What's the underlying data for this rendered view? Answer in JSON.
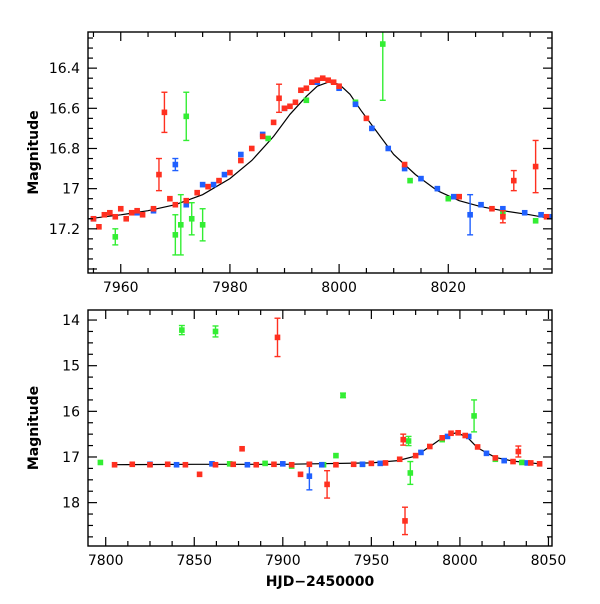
{
  "colors": {
    "red": "#ff3020",
    "green": "#33ee33",
    "blue": "#2060ff",
    "axis": "#000000"
  },
  "chart_data": [
    {
      "type": "scatter",
      "title": "",
      "xlabel": "",
      "ylabel": "Magnitude",
      "xlim": [
        7954,
        8039
      ],
      "ylim": [
        17.42,
        16.22
      ],
      "y_inverted": true,
      "grid": false,
      "xticks": [
        7960,
        7980,
        8000,
        8020
      ],
      "xtick_labels": [
        "7960",
        "7980",
        "8000",
        "8020"
      ],
      "yticks": [
        16.4,
        16.6,
        16.8,
        17.0,
        17.2
      ],
      "ytick_labels": [
        "16.4",
        "16.6",
        "16.8",
        "17",
        "17.2"
      ],
      "model_curve": {
        "x": [
          7954,
          7960,
          7965,
          7970,
          7975,
          7980,
          7984,
          7988,
          7991,
          7994,
          7996,
          7998,
          8000,
          8002,
          8004,
          8007,
          8010,
          8014,
          8018,
          8022,
          8026,
          8030,
          8035,
          8039
        ],
        "y": [
          17.15,
          17.13,
          17.11,
          17.08,
          17.03,
          16.95,
          16.86,
          16.74,
          16.63,
          16.54,
          16.49,
          16.47,
          16.48,
          16.53,
          16.61,
          16.72,
          16.83,
          16.93,
          17.01,
          17.06,
          17.09,
          17.11,
          17.13,
          17.15
        ]
      },
      "series": [
        {
          "color": "red",
          "points": [
            {
              "x": 7955,
              "y": 17.15
            },
            {
              "x": 7956,
              "y": 17.19
            },
            {
              "x": 7957,
              "y": 17.13
            },
            {
              "x": 7958,
              "y": 17.12
            },
            {
              "x": 7959,
              "y": 17.14
            },
            {
              "x": 7960,
              "y": 17.1
            },
            {
              "x": 7961,
              "y": 17.15
            },
            {
              "x": 7962,
              "y": 17.12
            },
            {
              "x": 7963,
              "y": 17.11
            },
            {
              "x": 7964,
              "y": 17.13
            },
            {
              "x": 7966,
              "y": 17.1
            },
            {
              "x": 7967,
              "y": 16.93,
              "err": 0.08
            },
            {
              "x": 7968,
              "y": 16.62,
              "err": 0.1
            },
            {
              "x": 7969,
              "y": 17.05
            },
            {
              "x": 7970,
              "y": 17.08
            },
            {
              "x": 7972,
              "y": 17.06
            },
            {
              "x": 7974,
              "y": 17.02
            },
            {
              "x": 7976,
              "y": 16.99
            },
            {
              "x": 7978,
              "y": 16.96
            },
            {
              "x": 7980,
              "y": 16.92
            },
            {
              "x": 7982,
              "y": 16.86
            },
            {
              "x": 7984,
              "y": 16.8
            },
            {
              "x": 7986,
              "y": 16.74
            },
            {
              "x": 7988,
              "y": 16.67
            },
            {
              "x": 7989,
              "y": 16.55,
              "err": 0.07
            },
            {
              "x": 7990,
              "y": 16.6
            },
            {
              "x": 7991,
              "y": 16.59
            },
            {
              "x": 7992,
              "y": 16.57
            },
            {
              "x": 7993,
              "y": 16.51
            },
            {
              "x": 7994,
              "y": 16.5
            },
            {
              "x": 7995,
              "y": 16.47
            },
            {
              "x": 7996,
              "y": 16.46
            },
            {
              "x": 7997,
              "y": 16.45
            },
            {
              "x": 7998,
              "y": 16.46
            },
            {
              "x": 7999,
              "y": 16.47
            },
            {
              "x": 8000,
              "y": 16.49
            },
            {
              "x": 8005,
              "y": 16.65
            },
            {
              "x": 8012,
              "y": 16.88
            },
            {
              "x": 8022,
              "y": 17.04
            },
            {
              "x": 8028,
              "y": 17.1
            },
            {
              "x": 8030,
              "y": 17.14,
              "err": 0.03
            },
            {
              "x": 8032,
              "y": 16.96,
              "err": 0.05
            },
            {
              "x": 8036,
              "y": 16.89,
              "err": 0.13
            },
            {
              "x": 8038,
              "y": 17.14
            }
          ]
        },
        {
          "color": "blue",
          "points": [
            {
              "x": 7955,
              "y": 17.15
            },
            {
              "x": 7963,
              "y": 17.12
            },
            {
              "x": 7966,
              "y": 17.11
            },
            {
              "x": 7970,
              "y": 16.88,
              "err": 0.03
            },
            {
              "x": 7972,
              "y": 17.08
            },
            {
              "x": 7975,
              "y": 16.98
            },
            {
              "x": 7977,
              "y": 16.98
            },
            {
              "x": 7979,
              "y": 16.93
            },
            {
              "x": 7982,
              "y": 16.83
            },
            {
              "x": 7986,
              "y": 16.73
            },
            {
              "x": 7990,
              "y": 16.6
            },
            {
              "x": 7996,
              "y": 16.47
            },
            {
              "x": 8000,
              "y": 16.5
            },
            {
              "x": 8003,
              "y": 16.58
            },
            {
              "x": 8006,
              "y": 16.7
            },
            {
              "x": 8009,
              "y": 16.8
            },
            {
              "x": 8012,
              "y": 16.9
            },
            {
              "x": 8015,
              "y": 16.95
            },
            {
              "x": 8018,
              "y": 17.0
            },
            {
              "x": 8021,
              "y": 17.04
            },
            {
              "x": 8024,
              "y": 17.13,
              "err": 0.1
            },
            {
              "x": 8026,
              "y": 17.08
            },
            {
              "x": 8030,
              "y": 17.1
            },
            {
              "x": 8034,
              "y": 17.12
            },
            {
              "x": 8037,
              "y": 17.13
            },
            {
              "x": 8039,
              "y": 17.14
            }
          ]
        },
        {
          "color": "green",
          "points": [
            {
              "x": 7959,
              "y": 17.24,
              "err": 0.04
            },
            {
              "x": 7970,
              "y": 17.23,
              "err": 0.1
            },
            {
              "x": 7971,
              "y": 17.18,
              "err": 0.15
            },
            {
              "x": 7972,
              "y": 16.64,
              "err": 0.12
            },
            {
              "x": 7973,
              "y": 17.15,
              "err": 0.08
            },
            {
              "x": 7975,
              "y": 17.18,
              "err": 0.08
            },
            {
              "x": 7987,
              "y": 16.75
            },
            {
              "x": 7994,
              "y": 16.56
            },
            {
              "x": 8003,
              "y": 16.57
            },
            {
              "x": 8008,
              "y": 16.28,
              "err": 0.28
            },
            {
              "x": 8013,
              "y": 16.96
            },
            {
              "x": 8020,
              "y": 17.05
            },
            {
              "x": 8030,
              "y": 17.12
            },
            {
              "x": 8036,
              "y": 17.16
            }
          ]
        }
      ]
    },
    {
      "type": "scatter",
      "title": "",
      "xlabel": "HJD−2450000",
      "ylabel": "Magnitude",
      "xlim": [
        7790,
        8052
      ],
      "ylim": [
        18.95,
        13.78
      ],
      "y_inverted": true,
      "grid": false,
      "xticks": [
        7800,
        7850,
        7900,
        7950,
        8000,
        8050
      ],
      "xtick_labels": [
        "7800",
        "7850",
        "7900",
        "7950",
        "8000",
        "8050"
      ],
      "yticks": [
        14,
        15,
        16,
        17,
        18
      ],
      "ytick_labels": [
        "14",
        "15",
        "16",
        "17",
        "18"
      ],
      "model_curve": {
        "x": [
          7805,
          7850,
          7900,
          7950,
          7965,
          7975,
          7985,
          7992,
          7998,
          8004,
          8010,
          8020,
          8030,
          8045
        ],
        "y": [
          17.17,
          17.16,
          17.16,
          17.13,
          17.08,
          16.98,
          16.72,
          16.53,
          16.47,
          16.56,
          16.8,
          17.01,
          17.09,
          17.15
        ]
      },
      "series": [
        {
          "color": "red",
          "points": [
            {
              "x": 7805,
              "y": 17.17
            },
            {
              "x": 7815,
              "y": 17.16
            },
            {
              "x": 7825,
              "y": 17.17
            },
            {
              "x": 7835,
              "y": 17.16
            },
            {
              "x": 7845,
              "y": 17.17
            },
            {
              "x": 7853,
              "y": 17.38
            },
            {
              "x": 7862,
              "y": 17.17
            },
            {
              "x": 7872,
              "y": 17.16
            },
            {
              "x": 7877,
              "y": 16.82
            },
            {
              "x": 7885,
              "y": 17.17
            },
            {
              "x": 7895,
              "y": 17.16
            },
            {
              "x": 7897,
              "y": 14.38,
              "err": 0.42
            },
            {
              "x": 7905,
              "y": 17.17
            },
            {
              "x": 7910,
              "y": 17.38
            },
            {
              "x": 7915,
              "y": 17.16
            },
            {
              "x": 7925,
              "y": 17.6,
              "err": 0.3
            },
            {
              "x": 7930,
              "y": 17.17
            },
            {
              "x": 7940,
              "y": 17.16
            },
            {
              "x": 7950,
              "y": 17.14
            },
            {
              "x": 7958,
              "y": 17.13
            },
            {
              "x": 7966,
              "y": 17.05
            },
            {
              "x": 7968,
              "y": 16.62,
              "err": 0.12
            },
            {
              "x": 7969,
              "y": 18.4,
              "err": 0.3
            },
            {
              "x": 7975,
              "y": 16.97
            },
            {
              "x": 7983,
              "y": 16.77
            },
            {
              "x": 7990,
              "y": 16.58
            },
            {
              "x": 7995,
              "y": 16.48
            },
            {
              "x": 7999,
              "y": 16.47
            },
            {
              "x": 8003,
              "y": 16.53
            },
            {
              "x": 8010,
              "y": 16.78
            },
            {
              "x": 8020,
              "y": 17.02
            },
            {
              "x": 8030,
              "y": 17.1
            },
            {
              "x": 8033,
              "y": 16.88,
              "err": 0.12
            },
            {
              "x": 8040,
              "y": 17.13
            },
            {
              "x": 8045,
              "y": 17.15
            }
          ]
        },
        {
          "color": "blue",
          "points": [
            {
              "x": 7825,
              "y": 17.16
            },
            {
              "x": 7840,
              "y": 17.17
            },
            {
              "x": 7860,
              "y": 17.15
            },
            {
              "x": 7880,
              "y": 17.17
            },
            {
              "x": 7900,
              "y": 17.15
            },
            {
              "x": 7915,
              "y": 17.42,
              "err": 0.3
            },
            {
              "x": 7922,
              "y": 17.17
            },
            {
              "x": 7945,
              "y": 17.16
            },
            {
              "x": 7955,
              "y": 17.14
            },
            {
              "x": 7978,
              "y": 16.9
            },
            {
              "x": 7993,
              "y": 16.55
            },
            {
              "x": 8005,
              "y": 16.55
            },
            {
              "x": 8015,
              "y": 16.92
            },
            {
              "x": 8025,
              "y": 17.08
            },
            {
              "x": 8038,
              "y": 17.13
            }
          ]
        },
        {
          "color": "green",
          "points": [
            {
              "x": 7797,
              "y": 17.12
            },
            {
              "x": 7843,
              "y": 14.22,
              "err": 0.1
            },
            {
              "x": 7862,
              "y": 14.25,
              "err": 0.12
            },
            {
              "x": 7870,
              "y": 17.15
            },
            {
              "x": 7890,
              "y": 17.14
            },
            {
              "x": 7905,
              "y": 17.2
            },
            {
              "x": 7923,
              "y": 17.17
            },
            {
              "x": 7934,
              "y": 15.65,
              "err": 0.05
            },
            {
              "x": 7930,
              "y": 16.97
            },
            {
              "x": 7945,
              "y": 17.16
            },
            {
              "x": 7971,
              "y": 16.65,
              "err": 0.1
            },
            {
              "x": 7972,
              "y": 17.35,
              "err": 0.25
            },
            {
              "x": 7990,
              "y": 16.62
            },
            {
              "x": 8008,
              "y": 16.1,
              "err": 0.35
            },
            {
              "x": 8020,
              "y": 17.05
            },
            {
              "x": 8035,
              "y": 17.12
            }
          ]
        }
      ]
    }
  ]
}
